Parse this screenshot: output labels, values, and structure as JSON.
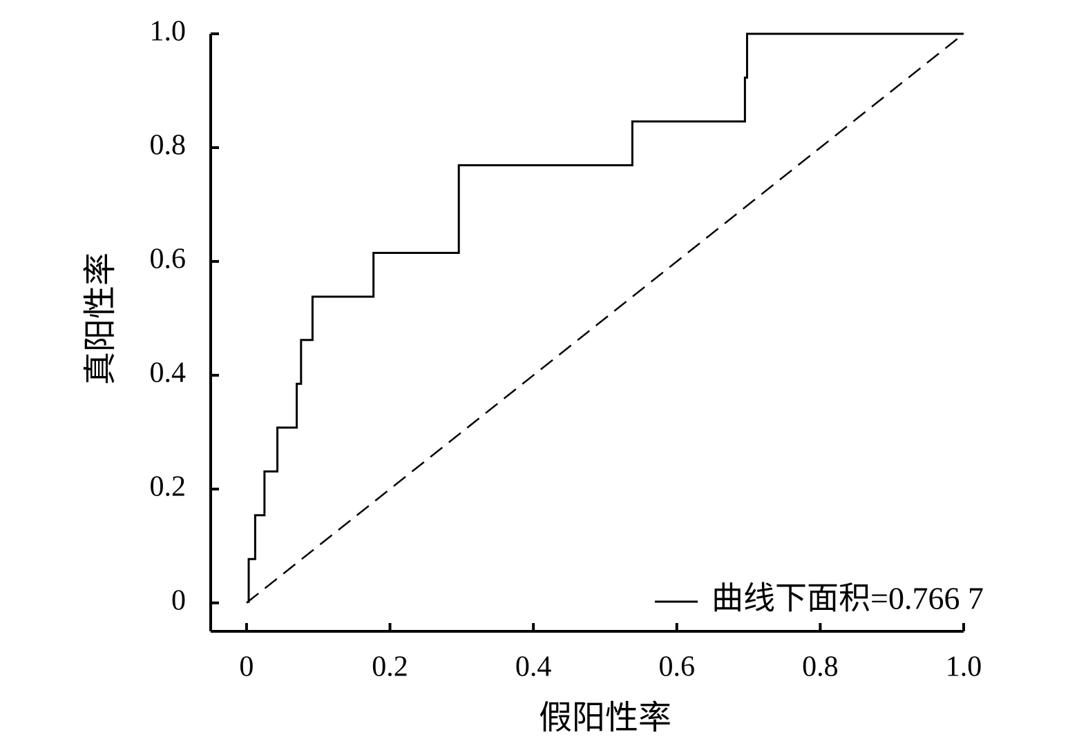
{
  "chart_data": {
    "type": "line",
    "xlabel": "假阳性率",
    "ylabel": "真阳性率",
    "series": [
      {
        "name": "曲线下面积=0.766 7",
        "color": "#000000",
        "dash": "solid",
        "x": [
          0.003,
          0.003,
          0.012,
          0.012,
          0.025,
          0.025,
          0.043,
          0.043,
          0.07,
          0.07,
          0.076,
          0.076,
          0.092,
          0.092,
          0.177,
          0.177,
          0.296,
          0.296,
          0.538,
          0.538,
          0.695,
          0.695,
          0.698,
          0.698,
          1.0
        ],
        "values": [
          0,
          0.077,
          0.077,
          0.154,
          0.154,
          0.231,
          0.231,
          0.308,
          0.308,
          0.385,
          0.385,
          0.462,
          0.462,
          0.538,
          0.538,
          0.615,
          0.615,
          0.769,
          0.769,
          0.846,
          0.846,
          0.923,
          0.923,
          1.0,
          1.0
        ]
      },
      {
        "color": "#000000",
        "dash": "dashed",
        "x": [
          0,
          1
        ],
        "values": [
          0,
          1
        ]
      }
    ],
    "xlim": [
      -0.05,
      1.0
    ],
    "ylim": [
      -0.05,
      1.0
    ],
    "xticks": [
      0,
      0.2,
      0.4,
      0.6,
      0.8,
      {
        "value": 1,
        "label": "1.0"
      }
    ],
    "yticks": [
      0,
      0.2,
      0.4,
      0.6,
      0.8,
      {
        "value": 1,
        "label": "1.0"
      }
    ],
    "grid": false,
    "legend": "lower right"
  }
}
